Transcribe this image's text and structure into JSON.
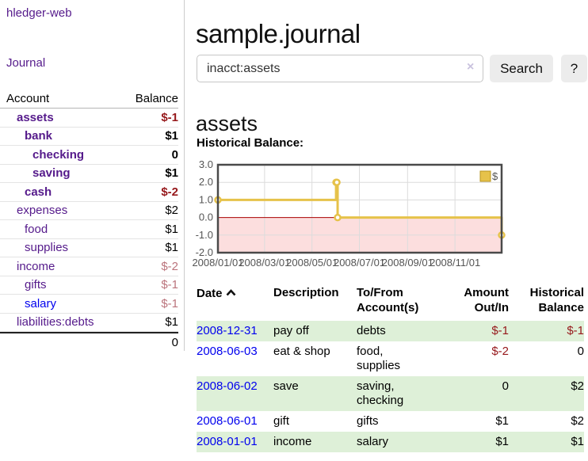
{
  "sidebar": {
    "brand": "hledger-web",
    "journal_link": "Journal",
    "header": {
      "account": "Account",
      "balance": "Balance"
    },
    "accounts": [
      {
        "name": "assets",
        "balance": "$-1"
      },
      {
        "name": "bank",
        "balance": "$1"
      },
      {
        "name": "checking",
        "balance": "0"
      },
      {
        "name": "saving",
        "balance": "$1"
      },
      {
        "name": "cash",
        "balance": "$-2"
      },
      {
        "name": "expenses",
        "balance": "$2"
      },
      {
        "name": "food",
        "balance": "$1"
      },
      {
        "name": "supplies",
        "balance": "$1"
      },
      {
        "name": "income",
        "balance": "$-2"
      },
      {
        "name": "gifts",
        "balance": "$-1"
      },
      {
        "name": "salary",
        "balance": "$-1"
      },
      {
        "name": "liabilities:debts",
        "balance": "$1"
      }
    ],
    "total": "0"
  },
  "main": {
    "title": "sample.journal",
    "account_heading": "assets",
    "chart_label": "Historical Balance:"
  },
  "search": {
    "value": "inacct:assets",
    "clear": "×",
    "button_label": "Search",
    "help_label": "?"
  },
  "chart_data": {
    "type": "line",
    "title": "Historical Balance:",
    "step": true,
    "series": [
      {
        "name": "$",
        "points": [
          [
            "2008-01-01",
            1
          ],
          [
            "2008-06-01",
            2
          ],
          [
            "2008-06-02",
            2
          ],
          [
            "2008-06-03",
            0
          ],
          [
            "2008-12-31",
            -1
          ]
        ]
      }
    ],
    "x_range": [
      "2008-01-01",
      "2008-12-31"
    ],
    "ylim": [
      -2,
      3
    ],
    "y_ticks": [
      3,
      2,
      1,
      0,
      -1,
      -2
    ],
    "y_tick_labels": [
      "3.0",
      "2.0",
      "1.0",
      "0.0",
      "-1.0",
      "-2.0"
    ],
    "x_ticks": [
      "2008-01-01",
      "2008-03-01",
      "2008-05-01",
      "2008-07-01",
      "2008-09-01",
      "2008-11-01"
    ],
    "x_tick_labels": [
      "2008/01/01",
      "2008/03/01",
      "2008/05/01",
      "2008/07/01",
      "2008/09/01",
      "2008/11/01"
    ],
    "legend_position": "top-right",
    "grid": true,
    "colors": {
      "line": "#E6C24A",
      "legend_border": "#B8941F",
      "marker_fill": "#FFFFFF",
      "negative_fill": "#FCDEDE",
      "zero_line": "#AA0000",
      "grid": "#DCDCDC",
      "border": "#4A4A4A"
    }
  },
  "register": {
    "headers": [
      "Date",
      "Description",
      "To/From Account(s)",
      "Amount Out/In",
      "Historical Balance"
    ],
    "rows": [
      {
        "date": "2008-12-31",
        "description": "pay off",
        "accounts": "debts",
        "amount": "$-1",
        "balance": "$-1"
      },
      {
        "date": "2008-06-03",
        "description": "eat & shop",
        "accounts": "food, supplies",
        "amount": "$-2",
        "balance": "0"
      },
      {
        "date": "2008-06-02",
        "description": "save",
        "accounts": "saving, checking",
        "amount": "0",
        "balance": "$2"
      },
      {
        "date": "2008-06-01",
        "description": "gift",
        "accounts": "gifts",
        "amount": "$1",
        "balance": "$2"
      },
      {
        "date": "2008-01-01",
        "description": "income",
        "accounts": "salary",
        "amount": "$1",
        "balance": "$1"
      }
    ]
  }
}
